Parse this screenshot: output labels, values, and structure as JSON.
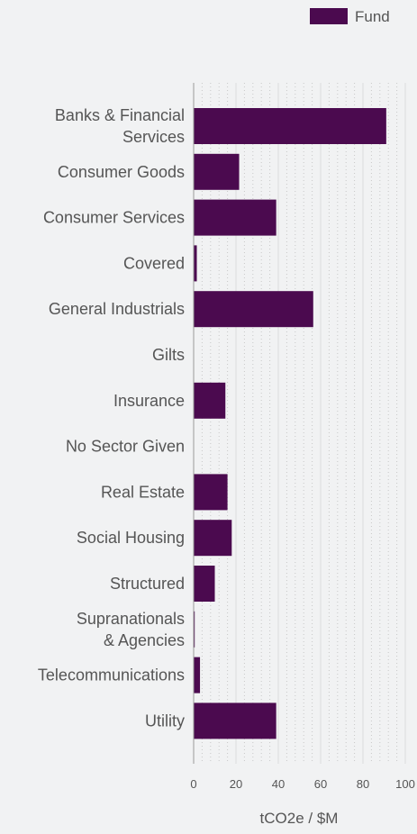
{
  "chart_data": {
    "type": "bar",
    "orientation": "horizontal",
    "categories": [
      "Banks & Financial Services",
      "Consumer Goods",
      "Consumer Services",
      "Covered",
      "General Industrials",
      "Gilts",
      "Insurance",
      "No Sector Given",
      "Real Estate",
      "Social Housing",
      "Structured",
      "Supranationals & Agencies",
      "Telecommunications",
      "Utility"
    ],
    "category_label_lines": [
      [
        "Banks & Financial",
        "Services"
      ],
      [
        "Consumer Goods"
      ],
      [
        "Consumer Services"
      ],
      [
        "Covered"
      ],
      [
        "General Industrials"
      ],
      [
        "Gilts"
      ],
      [
        "Insurance"
      ],
      [
        "No Sector Given"
      ],
      [
        "Real Estate"
      ],
      [
        "Social Housing"
      ],
      [
        "Structured"
      ],
      [
        "Supranationals",
        "& Agencies"
      ],
      [
        "Telecommunications"
      ],
      [
        "Utility"
      ]
    ],
    "series": [
      {
        "name": "Fund",
        "color": "#4b0a4f",
        "values": [
          91,
          21.5,
          39,
          1.5,
          56.5,
          0,
          15,
          0,
          16,
          18,
          10,
          0.5,
          3,
          39
        ]
      }
    ],
    "xlabel": "tCO2e / $M",
    "xlim": [
      0,
      100
    ],
    "xticks": [
      0,
      20,
      40,
      60,
      80,
      100
    ],
    "legend_position": "top-right",
    "grid": "vertical dotted",
    "colors": {
      "background": "#f1f2f3",
      "bar": "#4b0a4f",
      "text": "#555555",
      "axis": "#9a9a9a",
      "grid": "#c8c8c8"
    }
  }
}
